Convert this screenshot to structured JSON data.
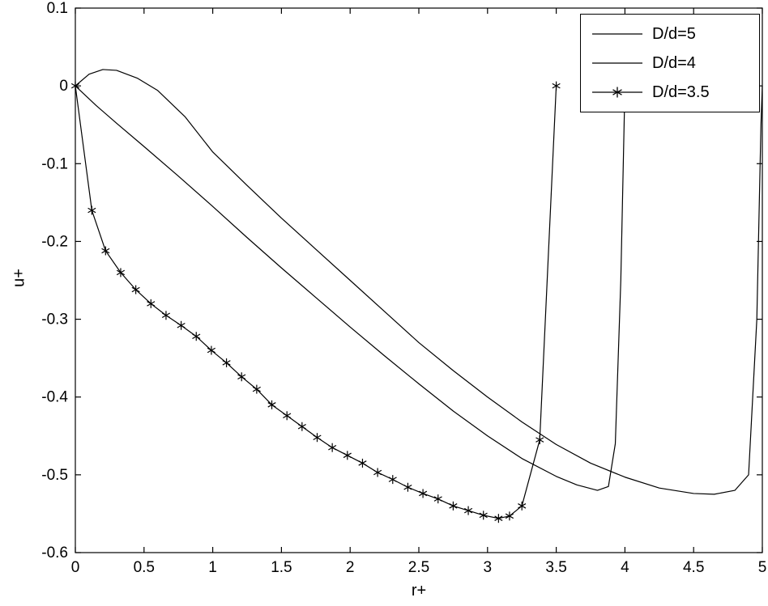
{
  "chart_data": {
    "type": "line",
    "title": "",
    "xlabel": "r+",
    "ylabel": "u+",
    "xlim": [
      0,
      5
    ],
    "ylim": [
      -0.6,
      0.1
    ],
    "xticks": [
      0,
      0.5,
      1,
      1.5,
      2,
      2.5,
      3,
      3.5,
      4,
      4.5,
      5
    ],
    "xtick_labels": [
      "0",
      "0.5",
      "1",
      "1.5",
      "2",
      "2.5",
      "3",
      "3.5",
      "4",
      "4.5",
      "5"
    ],
    "yticks": [
      0.1,
      0,
      -0.1,
      -0.2,
      -0.3,
      -0.4,
      -0.5,
      -0.6
    ],
    "ytick_labels": [
      "0.1",
      "0",
      "-0.1",
      "-0.2",
      "-0.3",
      "-0.4",
      "-0.5",
      "-0.6"
    ],
    "grid": false,
    "legend_position": "top-right",
    "background": "#ffffff",
    "axis_color": "#000000",
    "line_color": "#000000",
    "series": [
      {
        "name": "D/d=5",
        "color": "#000000",
        "marker": "none",
        "x": [
          0,
          0.1,
          0.2,
          0.3,
          0.45,
          0.6,
          0.8,
          1.0,
          1.25,
          1.5,
          1.75,
          2.0,
          2.25,
          2.5,
          2.75,
          3.0,
          3.25,
          3.5,
          3.75,
          4.0,
          4.25,
          4.5,
          4.65,
          4.8,
          4.9,
          4.96,
          4.99,
          5.0
        ],
        "y": [
          0,
          0.015,
          0.021,
          0.02,
          0.01,
          -0.006,
          -0.04,
          -0.085,
          -0.128,
          -0.17,
          -0.21,
          -0.25,
          -0.29,
          -0.33,
          -0.366,
          -0.4,
          -0.432,
          -0.461,
          -0.485,
          -0.503,
          -0.517,
          -0.524,
          -0.525,
          -0.52,
          -0.5,
          -0.3,
          -0.05,
          0
        ]
      },
      {
        "name": "D/d=4",
        "color": "#000000",
        "marker": "none",
        "x": [
          0,
          0.15,
          0.3,
          0.5,
          0.75,
          1.0,
          1.25,
          1.5,
          1.75,
          2.0,
          2.25,
          2.5,
          2.75,
          3.0,
          3.25,
          3.5,
          3.65,
          3.8,
          3.88,
          3.93,
          3.97,
          4.0
        ],
        "y": [
          0,
          -0.025,
          -0.048,
          -0.078,
          -0.116,
          -0.155,
          -0.195,
          -0.234,
          -0.272,
          -0.31,
          -0.347,
          -0.383,
          -0.418,
          -0.45,
          -0.479,
          -0.502,
          -0.513,
          -0.52,
          -0.515,
          -0.46,
          -0.25,
          0
        ]
      },
      {
        "name": "D/d=3.5",
        "color": "#000000",
        "marker": "asterisk",
        "x": [
          0,
          0.12,
          0.22,
          0.33,
          0.44,
          0.55,
          0.66,
          0.77,
          0.88,
          0.99,
          1.1,
          1.21,
          1.32,
          1.43,
          1.54,
          1.65,
          1.76,
          1.87,
          1.98,
          2.09,
          2.2,
          2.31,
          2.42,
          2.53,
          2.64,
          2.75,
          2.86,
          2.97,
          3.08,
          3.16,
          3.25,
          3.38,
          3.5
        ],
        "y": [
          0,
          -0.16,
          -0.212,
          -0.24,
          -0.262,
          -0.28,
          -0.295,
          -0.308,
          -0.322,
          -0.34,
          -0.356,
          -0.374,
          -0.39,
          -0.41,
          -0.424,
          -0.438,
          -0.452,
          -0.465,
          -0.475,
          -0.485,
          -0.497,
          -0.506,
          -0.516,
          -0.524,
          -0.531,
          -0.54,
          -0.546,
          -0.552,
          -0.556,
          -0.553,
          -0.54,
          -0.455,
          0
        ]
      }
    ]
  }
}
